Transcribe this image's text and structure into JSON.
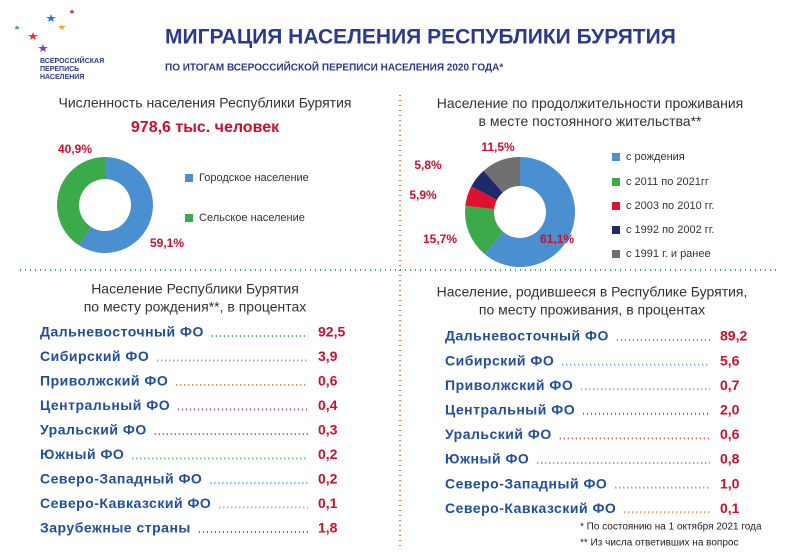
{
  "header": {
    "logo": [
      "ВСЕРОССИЙСКАЯ",
      "ПЕРЕПИСЬ",
      "НАСЕЛЕНИЯ"
    ],
    "title": "МИГРАЦИЯ НАСЕЛЕНИЯ РЕСПУБЛИКИ БУРЯТИЯ",
    "subtitle": "ПО ИТОГАМ ВСЕРОССИЙСКОЙ ПЕРЕПИСИ НАСЕЛЕНИЯ 2020 ГОДА*"
  },
  "chart_data": [
    {
      "type": "pie",
      "title": "Численность населения Республики Бурятия",
      "subtitle": "978,6 тыс. человек",
      "categories": [
        "Городское население",
        "Сельское население"
      ],
      "values": [
        59.1,
        40.9
      ],
      "value_labels": [
        "59,1%",
        "40,9%"
      ],
      "colors": [
        "#4a90d0",
        "#3aaa4a"
      ]
    },
    {
      "type": "pie",
      "title": "Население по продолжительности проживания в месте постоянного жительства**",
      "categories": [
        "с рождения",
        "с 2011 по 2021гг",
        "с 2003 по 2010 гг.",
        "с 1992 по 2002 гг.",
        "с 1991 г. и ранее"
      ],
      "values": [
        61.1,
        15.7,
        5.9,
        5.8,
        11.5
      ],
      "value_labels": [
        "61,1%",
        "15,7%",
        "5,9%",
        "5,8%",
        "11,5%"
      ],
      "colors": [
        "#4a90d0",
        "#3aaa4a",
        "#e0102f",
        "#1f2a6b",
        "#707070"
      ]
    }
  ],
  "lists": [
    {
      "title": [
        "Население Республики Бурятия",
        "по месту рождения**, в процентах"
      ],
      "items": [
        [
          "Дальневосточный ФО",
          "92,5"
        ],
        [
          "Сибирский ФО",
          "3,9"
        ],
        [
          "Приволжский ФО",
          "0,6"
        ],
        [
          "Центральный ФО",
          "0,4"
        ],
        [
          "Уральский ФО",
          "0,3"
        ],
        [
          "Южный ФО",
          "0,2"
        ],
        [
          "Северо-Западный ФО",
          "0,2"
        ],
        [
          "Северо-Кавказский ФО",
          "0,1"
        ],
        [
          "Зарубежные страны",
          "1,8"
        ]
      ]
    },
    {
      "title": [
        "Население, родившееся в Республике Бурятия,",
        "по месту проживания, в процентах"
      ],
      "items": [
        [
          "Дальневосточный ФО",
          "89,2"
        ],
        [
          "Сибирский ФО",
          "5,6"
        ],
        [
          "Приволжский ФО",
          "0,7"
        ],
        [
          "Центральный ФО",
          "2,0"
        ],
        [
          "Уральский ФО",
          "0,6"
        ],
        [
          "Южный ФО",
          "0,8"
        ],
        [
          "Северо-Западный ФО",
          "1,0"
        ],
        [
          "Северо-Кавказский ФО",
          "0,1"
        ]
      ]
    }
  ],
  "footnotes": [
    "* По состоянию на 1 октября 2021 года",
    "** Из числа ответивших  на вопрос"
  ]
}
